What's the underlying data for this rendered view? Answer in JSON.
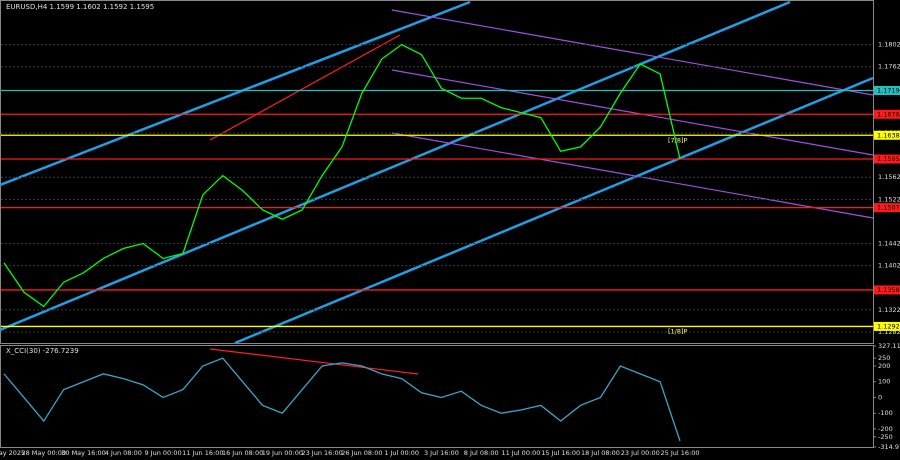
{
  "chart_data": [
    {
      "type": "line",
      "title": "EURUSD,H4 1.1599 1.1602 1.1592 1.1595",
      "x": [
        "23 May 2025",
        null,
        "28 May 00:00",
        null,
        "30 May 16:00",
        null,
        "4 Jun 08:00",
        null,
        "9 Jun 00:00",
        null,
        "11 Jun 16:00",
        null,
        "16 Jun 08:00",
        null,
        "19 Jun 00:00",
        null,
        "23 Jun 16:00",
        null,
        "26 Jun 08:00",
        null,
        "1 Jul 00:00",
        null,
        "3 Jul 16:00",
        null,
        "8 Jul 08:00",
        null,
        "11 Jul 00:00",
        null,
        "15 Jul 16:00",
        null,
        "18 Jul 08:00",
        null,
        "23 Jul 00:00",
        null,
        "25 Jul 16:00"
      ],
      "series": [
        {
          "name": "EURUSD",
          "color": "#00ff00",
          "values": [
            1.1407,
            1.1354,
            1.1328,
            1.1372,
            1.1389,
            1.1415,
            1.1433,
            1.1442,
            1.1415,
            1.1424,
            1.153,
            1.1565,
            1.1538,
            1.1503,
            1.1486,
            1.1503,
            1.1565,
            1.1617,
            1.1714,
            1.1776,
            1.1802,
            1.1784,
            1.1723,
            1.1705,
            1.1705,
            1.1688,
            1.1679,
            1.167,
            1.1609,
            1.1617,
            1.1653,
            1.1714,
            1.1767,
            1.1749,
            1.1595
          ]
        }
      ],
      "ylim": [
        1.1262,
        1.1881
      ],
      "yticks": [
        1.1802,
        1.1762,
        1.1642,
        1.1562,
        1.1522,
        1.1442,
        1.1402,
        1.1322,
        1.1282
      ],
      "grid": true,
      "levels": [
        {
          "value": 1.1719,
          "color": "#20c0c0"
        },
        {
          "value": 1.1676,
          "color": "#ff1a1a"
        },
        {
          "value": 1.1638,
          "color": "#ffff00"
        },
        {
          "value": 1.1595,
          "color": "#ff1a1a"
        },
        {
          "value": 1.1507,
          "color": "#ff1a1a"
        },
        {
          "value": 1.1358,
          "color": "#ff1a1a"
        },
        {
          "value": 1.1292,
          "color": "#ffff00"
        }
      ],
      "murray_labels": [
        {
          "text": "[7/8]P",
          "value": 1.1638
        },
        {
          "text": "[1/8]P",
          "value": 1.1292
        }
      ]
    },
    {
      "type": "line",
      "title": "X_CCI(30) -276.7239",
      "series": [
        {
          "name": "CCI",
          "color": "#3aa6c8",
          "values": [
            150,
            0,
            -150,
            50,
            100,
            150,
            120,
            80,
            0,
            50,
            200,
            250,
            100,
            -50,
            -100,
            50,
            200,
            220,
            200,
            150,
            120,
            30,
            0,
            40,
            -50,
            -100,
            -80,
            -50,
            -150,
            -50,
            0,
            200,
            150,
            100,
            -276.7239
          ]
        }
      ],
      "ylim": [
        -314.975,
        327.116
      ],
      "yticks": [
        327.116,
        250,
        200,
        100,
        0,
        -100,
        -200,
        -250,
        -314.975
      ]
    }
  ]
}
